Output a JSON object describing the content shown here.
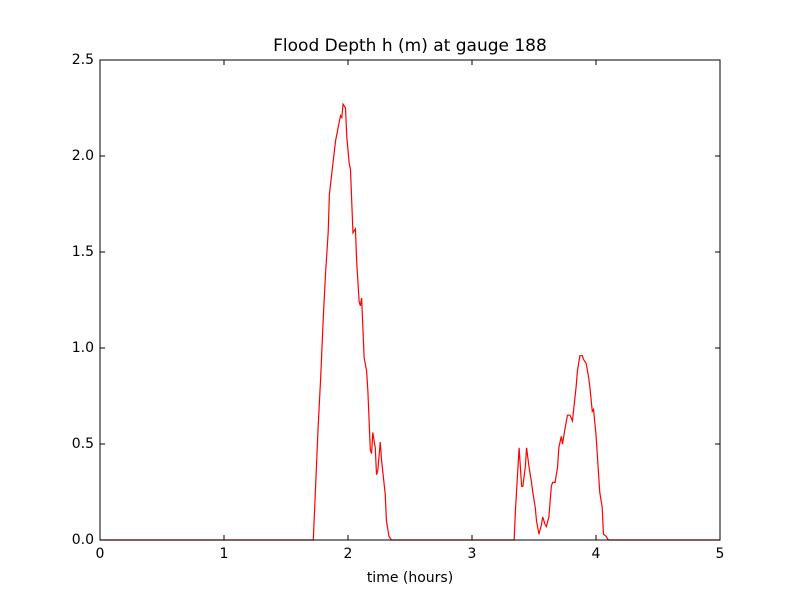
{
  "chart_data": {
    "type": "line",
    "title": "Flood Depth h (m) at gauge 188",
    "xlabel": "time (hours)",
    "x": [
      0,
      1.72,
      1.73,
      1.76,
      1.78,
      1.8,
      1.82,
      1.84,
      1.85,
      1.88,
      1.9,
      1.93,
      1.94,
      1.95,
      1.96,
      1.98,
      1.99,
      2.01,
      2.02,
      2.04,
      2.06,
      2.07,
      2.09,
      2.1,
      2.11,
      2.13,
      2.15,
      2.16,
      2.18,
      2.19,
      2.2,
      2.22,
      2.23,
      2.24,
      2.26,
      2.27,
      2.28,
      2.29,
      2.3,
      2.31,
      2.33,
      2.35,
      3.34,
      3.35,
      3.38,
      3.4,
      3.41,
      3.43,
      3.44,
      3.46,
      3.48,
      3.49,
      3.51,
      3.52,
      3.54,
      3.56,
      3.57,
      3.59,
      3.6,
      3.62,
      3.64,
      3.65,
      3.67,
      3.69,
      3.7,
      3.72,
      3.73,
      3.75,
      3.77,
      3.79,
      3.81,
      3.82,
      3.84,
      3.85,
      3.87,
      3.89,
      3.9,
      3.92,
      3.94,
      3.95,
      3.97,
      3.98,
      4.0,
      4.02,
      4.03,
      4.05,
      4.06,
      4.08,
      4.1,
      5
    ],
    "series": [
      {
        "color": "#ff0000",
        "values": [
          0,
          0,
          0.15,
          0.6,
          0.85,
          1.15,
          1.4,
          1.6,
          1.8,
          1.97,
          2.08,
          2.18,
          2.21,
          2.2,
          2.27,
          2.25,
          2.1,
          1.96,
          1.93,
          1.6,
          1.62,
          1.45,
          1.24,
          1.22,
          1.26,
          0.95,
          0.88,
          0.78,
          0.47,
          0.45,
          0.56,
          0.48,
          0.34,
          0.36,
          0.51,
          0.42,
          0.36,
          0.3,
          0.24,
          0.1,
          0.02,
          0,
          0,
          0.15,
          0.48,
          0.28,
          0.28,
          0.38,
          0.48,
          0.38,
          0.3,
          0.25,
          0.17,
          0.1,
          0.03,
          0.08,
          0.12,
          0.08,
          0.07,
          0.12,
          0.28,
          0.3,
          0.3,
          0.38,
          0.48,
          0.54,
          0.5,
          0.58,
          0.65,
          0.65,
          0.62,
          0.68,
          0.8,
          0.88,
          0.96,
          0.96,
          0.94,
          0.92,
          0.85,
          0.8,
          0.67,
          0.68,
          0.55,
          0.35,
          0.25,
          0.17,
          0.03,
          0.02,
          0,
          0
        ]
      }
    ],
    "reference_line": {
      "y": 0,
      "color": "#000000",
      "style": "dashed"
    },
    "xlim": [
      0,
      5
    ],
    "xticks": [
      0,
      1,
      2,
      3,
      4,
      5
    ],
    "ylim": [
      0,
      2.5
    ],
    "yticks": [
      {
        "value": 0,
        "label": "0.0"
      },
      0.5,
      {
        "value": 1,
        "label": "1.0"
      },
      1.5,
      {
        "value": 2,
        "label": "2.0"
      },
      2.5
    ]
  }
}
